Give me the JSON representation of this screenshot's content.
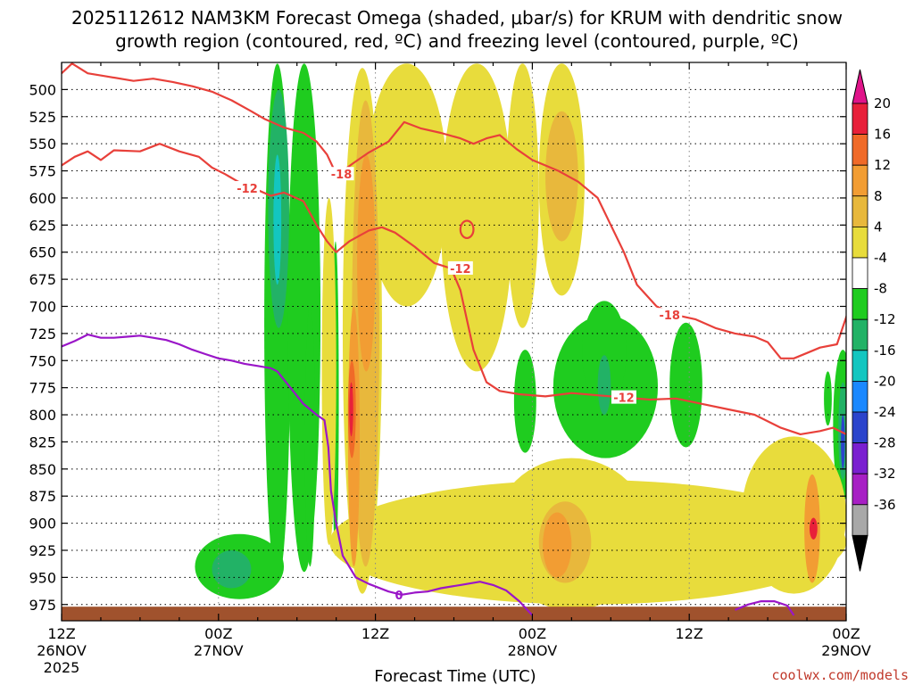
{
  "chart_data": {
    "type": "contour",
    "title_line1": "2025112612 NAM3KM Forecast Omega (shaded, μbar/s) for KRUM with dendritic snow",
    "title_line2": "growth region (contoured, red, ºC) and freezing level (contoured, purple, ºC)",
    "xlabel": "Forecast Time (UTC)",
    "credit": "coolwx.com/models",
    "y_axis": {
      "range": [
        475,
        990
      ],
      "ticks": [
        500,
        525,
        550,
        575,
        600,
        625,
        650,
        675,
        700,
        725,
        750,
        775,
        800,
        825,
        850,
        875,
        900,
        925,
        950,
        975
      ]
    },
    "x_axis": {
      "range_hours": [
        0,
        60
      ],
      "ticks": [
        {
          "h": 0,
          "l1": "12Z",
          "l2": "26NOV",
          "l3": "2025"
        },
        {
          "h": 12,
          "l1": "00Z",
          "l2": "27NOV",
          "l3": ""
        },
        {
          "h": 24,
          "l1": "12Z",
          "l2": "",
          "l3": ""
        },
        {
          "h": 36,
          "l1": "00Z",
          "l2": "28NOV",
          "l3": ""
        },
        {
          "h": 48,
          "l1": "12Z",
          "l2": "",
          "l3": ""
        },
        {
          "h": 60,
          "l1": "00Z",
          "l2": "29NOV",
          "l3": ""
        }
      ]
    },
    "colorbar": {
      "labels": [
        "20",
        "16",
        "12",
        "8",
        "4",
        "-4",
        "-8",
        "-12",
        "-16",
        "-20",
        "-24",
        "-28",
        "-32",
        "-36"
      ],
      "colors": [
        "#e8203a",
        "#f06a28",
        "#f29d33",
        "#e8b83c",
        "#e8dc3c",
        "#ffffff",
        "#1fcc1f",
        "#22b266",
        "#13c6c0",
        "#1a88ff",
        "#2b44cc",
        "#7a1fd0",
        "#a71fc4",
        "#a8a8a8"
      ],
      "top_color": "#e0148a",
      "bottom_color": "#000000"
    },
    "shaded_regions": [
      {
        "color": "#1fcc1f",
        "h": [
          15.5,
          17.5
        ],
        "p": [
          476,
          955
        ]
      },
      {
        "color": "#1fcc1f",
        "h": [
          17.3,
          19.8
        ],
        "p": [
          476,
          945
        ]
      },
      {
        "color": "#1fcc1f",
        "h": [
          18.6,
          19.4
        ],
        "p": [
          700,
          940
        ]
      },
      {
        "color": "#1fcc1f",
        "h": [
          20.7,
          21.2
        ],
        "p": [
          640,
          930
        ]
      },
      {
        "color": "#1fcc1f",
        "h": [
          10.2,
          17.0
        ],
        "p": [
          910,
          970
        ]
      },
      {
        "color": "#22b266",
        "h": [
          15.8,
          17.4
        ],
        "p": [
          500,
          720
        ]
      },
      {
        "color": "#13c6c0",
        "h": [
          16.2,
          16.8
        ],
        "p": [
          560,
          680
        ]
      },
      {
        "color": "#22b266",
        "h": [
          11.5,
          14.5
        ],
        "p": [
          925,
          960
        ]
      },
      {
        "color": "#1fcc1f",
        "h": [
          34.6,
          36.3
        ],
        "p": [
          740,
          835
        ]
      },
      {
        "color": "#1fcc1f",
        "h": [
          37.6,
          45.6
        ],
        "p": [
          708,
          840
        ]
      },
      {
        "color": "#1fcc1f",
        "h": [
          39.8,
          43.2
        ],
        "p": [
          695,
          790
        ]
      },
      {
        "color": "#22b266",
        "h": [
          41.0,
          42.0
        ],
        "p": [
          745,
          800
        ]
      },
      {
        "color": "#1fcc1f",
        "h": [
          46.5,
          49.0
        ],
        "p": [
          715,
          830
        ]
      },
      {
        "color": "#1fcc1f",
        "h": [
          58.3,
          58.9
        ],
        "p": [
          760,
          810
        ]
      },
      {
        "color": "#1fcc1f",
        "h": [
          59.0,
          60.5
        ],
        "p": [
          740,
          880
        ]
      },
      {
        "color": "#22b266",
        "h": [
          59.4,
          60.1
        ],
        "p": [
          770,
          860
        ]
      },
      {
        "color": "#2b44cc",
        "h": [
          59.6,
          59.9
        ],
        "p": [
          800,
          850
        ]
      },
      {
        "color": "#e8dc3c",
        "h": [
          19.9,
          21.0
        ],
        "p": [
          600,
          920
        ]
      },
      {
        "color": "#e8dc3c",
        "h": [
          21.5,
          24.5
        ],
        "p": [
          480,
          965
        ]
      },
      {
        "color": "#e8dc3c",
        "h": [
          23.3,
          29.5
        ],
        "p": [
          476,
          700
        ]
      },
      {
        "color": "#e8dc3c",
        "h": [
          29.0,
          34.5
        ],
        "p": [
          476,
          760
        ]
      },
      {
        "color": "#e8dc3c",
        "h": [
          34.0,
          36.5
        ],
        "p": [
          476,
          720
        ]
      },
      {
        "color": "#e8dc3c",
        "h": [
          36.5,
          40.0
        ],
        "p": [
          476,
          690
        ]
      },
      {
        "color": "#e8dc3c",
        "h": [
          20.5,
          60.0
        ],
        "p": [
          860,
          975
        ]
      },
      {
        "color": "#e8dc3c",
        "h": [
          33.0,
          45.0
        ],
        "p": [
          840,
          980
        ]
      },
      {
        "color": "#e8dc3c",
        "h": [
          52.0,
          60.0
        ],
        "p": [
          820,
          965
        ]
      },
      {
        "color": "#e8b83c",
        "h": [
          22.2,
          24.3
        ],
        "p": [
          510,
          940
        ]
      },
      {
        "color": "#e8b83c",
        "h": [
          36.5,
          40.5
        ],
        "p": [
          880,
          955
        ]
      },
      {
        "color": "#e8b83c",
        "h": [
          37.0,
          39.5
        ],
        "p": [
          520,
          640
        ]
      },
      {
        "color": "#f29d33",
        "h": [
          22.6,
          24.0
        ],
        "p": [
          560,
          760
        ]
      },
      {
        "color": "#f29d33",
        "h": [
          21.9,
          22.8
        ],
        "p": [
          700,
          940
        ]
      },
      {
        "color": "#f06a28",
        "h": [
          21.9,
          22.5
        ],
        "p": [
          750,
          840
        ]
      },
      {
        "color": "#e8203a",
        "h": [
          22.0,
          22.3
        ],
        "p": [
          770,
          820
        ]
      },
      {
        "color": "#f29d33",
        "h": [
          36.8,
          39.0
        ],
        "p": [
          890,
          950
        ]
      },
      {
        "color": "#f29d33",
        "h": [
          56.8,
          58.0
        ],
        "p": [
          855,
          955
        ]
      },
      {
        "color": "#e8203a",
        "h": [
          57.2,
          57.8
        ],
        "p": [
          895,
          915
        ]
      }
    ],
    "red_contours": [
      {
        "label": "-18",
        "points": [
          [
            0,
            485
          ],
          [
            0.8,
            476
          ],
          [
            2,
            485
          ],
          [
            3.5,
            488
          ],
          [
            5.5,
            492
          ],
          [
            7,
            490
          ],
          [
            8.5,
            493
          ],
          [
            10,
            497
          ],
          [
            11.5,
            502
          ],
          [
            13,
            510
          ],
          [
            14.5,
            520
          ],
          [
            15.5,
            527
          ],
          [
            17,
            535
          ],
          [
            18.5,
            540
          ],
          [
            19.5,
            548
          ],
          [
            20.3,
            560
          ],
          [
            21.0,
            578
          ],
          [
            21.5,
            575
          ],
          [
            22.3,
            568
          ],
          [
            23.5,
            558
          ],
          [
            25,
            548
          ],
          [
            26.2,
            530
          ],
          [
            27.5,
            536
          ],
          [
            29,
            540
          ],
          [
            30.5,
            545
          ],
          [
            31.5,
            550
          ],
          [
            32.5,
            545
          ],
          [
            33.5,
            542
          ],
          [
            34.8,
            555
          ],
          [
            36,
            565
          ],
          [
            37,
            570
          ],
          [
            38,
            575
          ],
          [
            39.5,
            585
          ],
          [
            41,
            600
          ],
          [
            42,
            625
          ],
          [
            43,
            650
          ],
          [
            44,
            680
          ],
          [
            45.5,
            700
          ],
          [
            47,
            708
          ],
          [
            48.5,
            712
          ],
          [
            50,
            720
          ],
          [
            51.5,
            725
          ],
          [
            53,
            728
          ],
          [
            54,
            733
          ],
          [
            55,
            748
          ],
          [
            56,
            748
          ],
          [
            57,
            743
          ],
          [
            58,
            738
          ],
          [
            59.3,
            735
          ],
          [
            60,
            710
          ],
          [
            60.5,
            690
          ]
        ]
      },
      {
        "label": "-12",
        "points": [
          [
            0,
            570
          ],
          [
            1,
            562
          ],
          [
            2,
            557
          ],
          [
            3,
            565
          ],
          [
            4,
            556
          ],
          [
            6,
            557
          ],
          [
            7.5,
            550
          ],
          [
            9,
            557
          ],
          [
            10.5,
            562
          ],
          [
            11.5,
            572
          ],
          [
            12.5,
            578
          ],
          [
            13.5,
            585
          ],
          [
            14.5,
            590
          ],
          [
            16,
            598
          ],
          [
            17,
            595
          ],
          [
            18.5,
            603
          ],
          [
            19.5,
            625
          ],
          [
            20.3,
            640
          ],
          [
            21.0,
            650
          ],
          [
            22.0,
            640
          ],
          [
            23.5,
            630
          ],
          [
            24.5,
            627
          ],
          [
            25.5,
            632
          ],
          [
            27,
            645
          ],
          [
            28.5,
            660
          ],
          [
            29.8,
            665
          ],
          [
            30.5,
            685
          ],
          [
            31.5,
            740
          ],
          [
            32.5,
            770
          ],
          [
            33.5,
            778
          ],
          [
            35,
            781
          ],
          [
            37,
            783
          ],
          [
            39,
            780
          ],
          [
            41,
            782
          ],
          [
            43,
            784
          ],
          [
            45,
            786
          ],
          [
            47,
            785
          ],
          [
            49,
            790
          ],
          [
            51,
            795
          ],
          [
            53,
            800
          ],
          [
            55,
            812
          ],
          [
            56.5,
            818
          ],
          [
            58,
            815
          ],
          [
            59,
            812
          ],
          [
            60,
            818
          ]
        ]
      }
    ],
    "red_closed": {
      "center": [
        31.0,
        629
      ],
      "rx_h": 0.5,
      "ry_p": 8
    },
    "red_labels": [
      {
        "text": "-18",
        "h": 21.4,
        "p": 578
      },
      {
        "text": "-12",
        "h": 14.2,
        "p": 591
      },
      {
        "text": "-12",
        "h": 30.5,
        "p": 665
      },
      {
        "text": "-18",
        "h": 46.5,
        "p": 708
      },
      {
        "text": "-12",
        "h": 43.0,
        "p": 784
      }
    ],
    "purple_contours": [
      {
        "label": "0",
        "points": [
          [
            0,
            737
          ],
          [
            1,
            732
          ],
          [
            2,
            726
          ],
          [
            3,
            729
          ],
          [
            4,
            729
          ],
          [
            5,
            728
          ],
          [
            6,
            727
          ],
          [
            7,
            729
          ],
          [
            8,
            731
          ],
          [
            9,
            735
          ],
          [
            10,
            740
          ],
          [
            11,
            744
          ],
          [
            12,
            748
          ],
          [
            13,
            750
          ],
          [
            14,
            753
          ],
          [
            15,
            755
          ],
          [
            16,
            757
          ],
          [
            16.5,
            760
          ],
          [
            17.5,
            775
          ],
          [
            18.5,
            790
          ],
          [
            19.5,
            800
          ],
          [
            20.1,
            805
          ],
          [
            20.4,
            830
          ],
          [
            20.6,
            870
          ],
          [
            21.0,
            900
          ],
          [
            21.5,
            930
          ],
          [
            22.5,
            950
          ],
          [
            23.5,
            956
          ],
          [
            25,
            963
          ],
          [
            26,
            966
          ],
          [
            27,
            964
          ],
          [
            28,
            963
          ],
          [
            29,
            960
          ],
          [
            30.5,
            957
          ],
          [
            32,
            954
          ],
          [
            33,
            957
          ],
          [
            34,
            962
          ],
          [
            35,
            972
          ],
          [
            36,
            985
          ]
        ]
      },
      {
        "label": "",
        "points": [
          [
            51.5,
            980
          ],
          [
            52.5,
            975
          ],
          [
            53.5,
            972
          ],
          [
            54.5,
            972
          ],
          [
            55.5,
            976
          ],
          [
            56,
            985
          ]
        ]
      }
    ],
    "purple_labels": [
      {
        "text": "0",
        "h": 25.8,
        "p": 966
      }
    ],
    "terrain": {
      "color": "#a0522d",
      "top_p": 977
    }
  }
}
